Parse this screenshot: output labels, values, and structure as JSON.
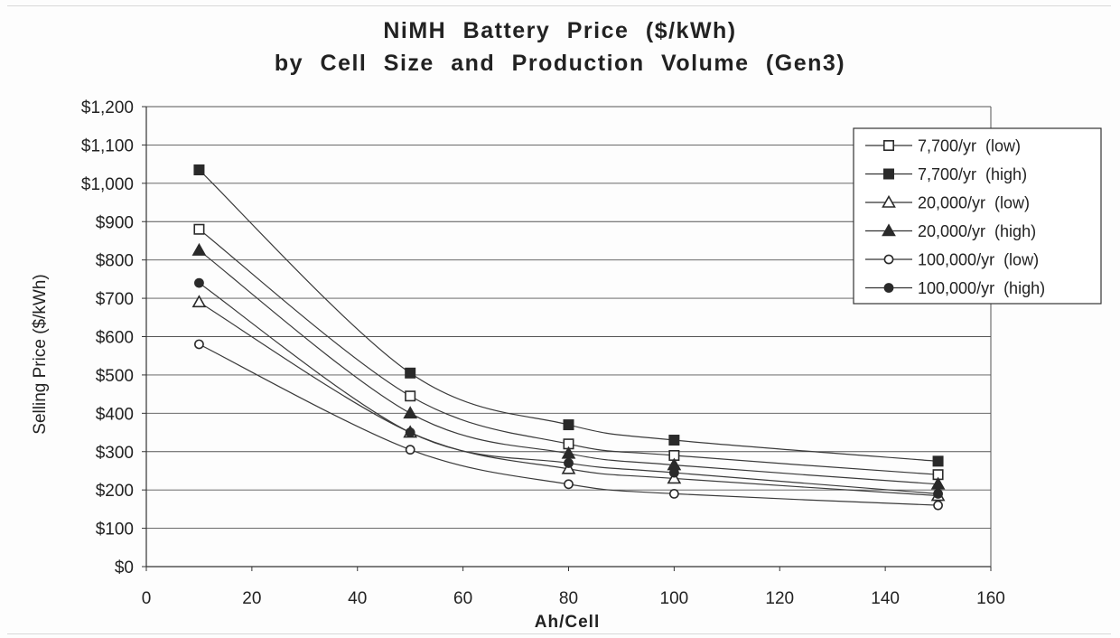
{
  "chart_data": {
    "type": "line",
    "title": "NiMH Battery Price ($/kWh)",
    "subtitle": "by Cell Size and Production Volume (Gen3)",
    "xlabel": "Ah/Cell",
    "ylabel": "Selling Price ($/kWh)",
    "xlim": [
      0,
      160
    ],
    "ylim": [
      0,
      1200
    ],
    "x_ticks": [
      0,
      20,
      40,
      60,
      80,
      100,
      120,
      140,
      160
    ],
    "x_tick_labels": [
      "0",
      "20",
      "40",
      "60",
      "80",
      "100",
      "120",
      "140",
      "160"
    ],
    "y_ticks": [
      0,
      100,
      200,
      300,
      400,
      500,
      600,
      700,
      800,
      900,
      1000,
      1100,
      1200
    ],
    "y_tick_labels": [
      "$0",
      "$100",
      "$200",
      "$300",
      "$400",
      "$500",
      "$600",
      "$700",
      "$800",
      "$900",
      "$1,000",
      "$1,100",
      "$1,200"
    ],
    "grid": "horizontal",
    "legend_position": "top-right",
    "x": [
      10,
      50,
      80,
      100,
      150
    ],
    "series": [
      {
        "name": "7,700/yr  (low)",
        "marker": "open-square",
        "values": [
          880,
          445,
          320,
          290,
          240
        ]
      },
      {
        "name": "7,700/yr  (high)",
        "marker": "filled-square",
        "values": [
          1035,
          505,
          370,
          330,
          275
        ]
      },
      {
        "name": "20,000/yr  (low)",
        "marker": "open-triangle",
        "values": [
          690,
          350,
          255,
          230,
          185
        ]
      },
      {
        "name": "20,000/yr  (high)",
        "marker": "filled-triangle",
        "values": [
          825,
          400,
          295,
          265,
          215
        ]
      },
      {
        "name": "100,000/yr  (low)",
        "marker": "open-circle",
        "values": [
          580,
          305,
          215,
          190,
          160
        ]
      },
      {
        "name": "100,000/yr  (high)",
        "marker": "filled-circle",
        "values": [
          740,
          350,
          270,
          245,
          190
        ]
      }
    ],
    "colors": {
      "line": "#3a3a3a",
      "marker": "#2a2a2a",
      "grid": "#555555",
      "background": "#ffffff"
    }
  }
}
